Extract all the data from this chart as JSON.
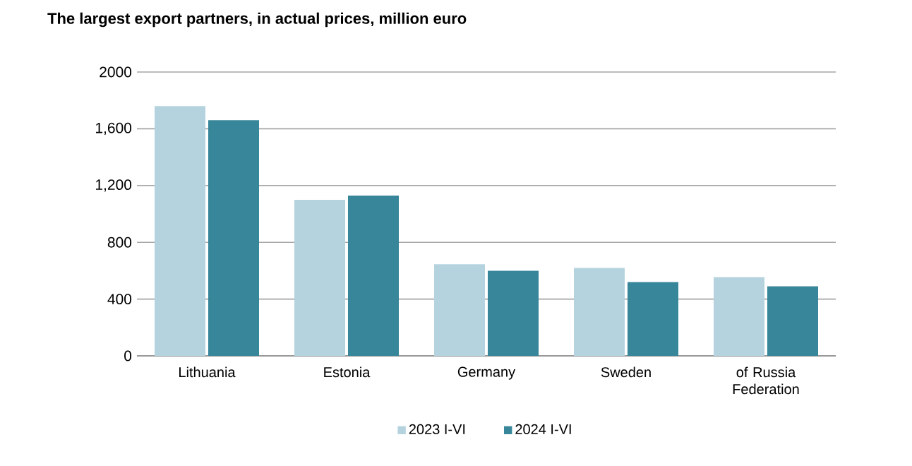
{
  "chart_data": {
    "type": "bar",
    "title": "The largest export partners, in actual prices, million euro",
    "categories": [
      "Lithuania",
      "Estonia",
      "Germany",
      "Sweden",
      "of Russia Federation"
    ],
    "series": [
      {
        "name": "2023 I-VI",
        "color": "#b4d3df",
        "values": [
          1760,
          1100,
          645,
          620,
          555
        ]
      },
      {
        "name": "2024 I-VI",
        "color": "#37869a",
        "values": [
          1660,
          1130,
          600,
          520,
          490
        ]
      }
    ],
    "ylim": [
      0,
      2000
    ],
    "yticks": [
      0,
      400,
      {
        "value": 800,
        "label": "800"
      },
      {
        "value": 1200,
        "label": "1,200"
      },
      {
        "value": 1600,
        "label": "1,600"
      },
      {
        "value": 2000,
        "label": "2000"
      }
    ],
    "grid": "y",
    "legend": "bottom"
  }
}
